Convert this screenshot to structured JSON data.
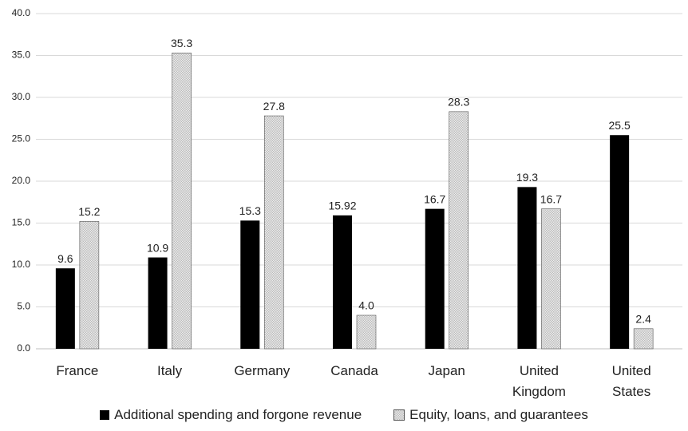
{
  "chart_data": {
    "type": "bar",
    "categories": [
      "France",
      "Italy",
      "Germany",
      "Canada",
      "Japan",
      "United Kingdom",
      "United States"
    ],
    "series": [
      {
        "name": "Additional spending and forgone revenue",
        "color": "#000000",
        "values": [
          9.6,
          10.9,
          15.3,
          15.92,
          16.7,
          19.3,
          25.5
        ],
        "value_labels": [
          "9.6",
          "10.9",
          "15.3",
          "15.92",
          "16.7",
          "19.3",
          "25.5"
        ]
      },
      {
        "name": "Equity, loans, and guarantees",
        "color": "#bdbdbd",
        "values": [
          15.2,
          35.3,
          27.8,
          4.0,
          28.3,
          16.7,
          2.4
        ],
        "value_labels": [
          "15.2",
          "35.3",
          "27.8",
          "4.0",
          "28.3",
          "16.7",
          "2.4"
        ]
      }
    ],
    "ylim": [
      0,
      40
    ],
    "yticks": [
      {
        "value": 0,
        "label": "0.0"
      },
      {
        "value": 5,
        "label": "5.0"
      },
      {
        "value": 10,
        "label": "10.0"
      },
      {
        "value": 15,
        "label": "15.0"
      },
      {
        "value": 20,
        "label": "20.0"
      },
      {
        "value": 25,
        "label": "25.0"
      },
      {
        "value": 30,
        "label": "30.0"
      },
      {
        "value": 35,
        "label": "35.0"
      },
      {
        "value": 40,
        "label": "40.0"
      }
    ],
    "grid": true,
    "legend": "bottom"
  }
}
